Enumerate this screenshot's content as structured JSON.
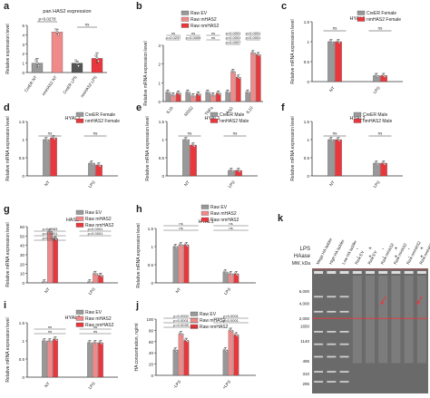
{
  "figure": {
    "panel_letters": [
      "a",
      "b",
      "c",
      "d",
      "e",
      "f",
      "g",
      "h",
      "i",
      "j",
      "k"
    ],
    "colors": {
      "grey": "#999999",
      "pink": "#F08A8A",
      "red": "#E8383D",
      "dark": "#555555",
      "gel_bg": "#6a6a6a",
      "gel_line": "#E8383D"
    }
  },
  "chart_data": [
    {
      "panel": "a",
      "type": "bar",
      "title": "pan HAS2 expression",
      "ylabel": "Relative expression level",
      "ylim": [
        0,
        5
      ],
      "yticks": [
        0,
        1,
        2,
        3,
        4,
        5
      ],
      "categories": [
        "CreER NT",
        "nmHAS2 NT",
        "CreER LPS",
        "nmHAS2 LPS"
      ],
      "values": [
        1.0,
        4.3,
        1.0,
        1.5
      ],
      "errors": [
        0.5,
        0.3,
        0.2,
        0.6
      ],
      "bar_colors": [
        "#999999",
        "#F08A8A",
        "#555555",
        "#E8383D"
      ],
      "annotations": [
        {
          "text": "p=0.0278",
          "from": 0,
          "to": 1
        },
        {
          "text": "ns",
          "from": 2,
          "to": 3
        }
      ]
    },
    {
      "panel": "b",
      "type": "bar",
      "ylabel": "Relative mRNA expression level",
      "ylim": [
        0,
        3
      ],
      "yticks": [
        0,
        1,
        2,
        3
      ],
      "categories": [
        "IL1b",
        "NOS2",
        "TNFa",
        "Arg1",
        "IL10"
      ],
      "legend": [
        "Raw EV",
        "Raw mHAS2",
        "Raw nmHAS2"
      ],
      "series": [
        {
          "name": "Raw EV",
          "values": [
            0.5,
            0.5,
            0.5,
            0.5,
            0.5
          ]
        },
        {
          "name": "Raw mHAS2",
          "values": [
            0.35,
            0.3,
            0.35,
            1.6,
            2.6
          ]
        },
        {
          "name": "Raw nmHAS2",
          "values": [
            0.45,
            0.4,
            0.45,
            1.3,
            2.5
          ]
        }
      ],
      "annotations": [
        {
          "group": 0,
          "lines": [
            "ns",
            "p=0.0297"
          ]
        },
        {
          "group": 1,
          "lines": [
            "ns",
            "p=0.0005"
          ]
        },
        {
          "group": 2,
          "lines": [
            "ns",
            "ns"
          ]
        },
        {
          "group": 3,
          "lines": [
            "p<0.0001",
            "p<0.0001",
            "p=0.0007"
          ]
        },
        {
          "group": 4,
          "lines": [
            "p<0.0001",
            "p<0.0001"
          ]
        }
      ]
    },
    {
      "panel": "c",
      "type": "bar",
      "title": "HYAL1",
      "ylabel": "Relative mRNA expression level",
      "ylim": [
        0,
        1.5
      ],
      "yticks": [
        0,
        0.5,
        1.0,
        1.5
      ],
      "categories": [
        "NT",
        "LPS"
      ],
      "legend": [
        "CreER Female",
        "nmHAS2 Female"
      ],
      "series": [
        {
          "name": "CreER Female",
          "values": [
            1.0,
            0.15
          ]
        },
        {
          "name": "nmHAS2 Female",
          "values": [
            1.0,
            0.15
          ]
        }
      ],
      "annotations": [
        "ns",
        "ns"
      ]
    },
    {
      "panel": "d",
      "type": "bar",
      "title": "HYAL2",
      "ylabel": "Relative mRNA expression level",
      "ylim": [
        0,
        1.5
      ],
      "yticks": [
        0,
        0.5,
        1.0,
        1.5
      ],
      "categories": [
        "NT",
        "LPS"
      ],
      "legend": [
        "CreER Female",
        "nmHAS2 Female"
      ],
      "series": [
        {
          "name": "CreER Female",
          "values": [
            1.0,
            0.35
          ]
        },
        {
          "name": "nmHAS2 Female",
          "values": [
            1.05,
            0.3
          ]
        }
      ],
      "annotations": [
        "ns",
        "ns"
      ]
    },
    {
      "panel": "e",
      "type": "bar",
      "title": "HYAL1",
      "ylabel": "Relative mRNA expression level",
      "ylim": [
        0,
        1.5
      ],
      "yticks": [
        0,
        0.5,
        1.0,
        1.5
      ],
      "categories": [
        "NT",
        "LPS"
      ],
      "legend": [
        "CreER Male",
        "nmHAS2 Male"
      ],
      "series": [
        {
          "name": "CreER Male",
          "values": [
            1.0,
            0.15
          ]
        },
        {
          "name": "nmHAS2 Male",
          "values": [
            0.85,
            0.15
          ]
        }
      ],
      "annotations": [
        "ns",
        "ns"
      ]
    },
    {
      "panel": "f",
      "type": "bar",
      "title": "HYAL2",
      "ylabel": "Relative mRNA expression level",
      "ylim": [
        0,
        1.5
      ],
      "yticks": [
        0,
        0.5,
        1.0,
        1.5
      ],
      "categories": [
        "NT",
        "LPS"
      ],
      "legend": [
        "CreER Male",
        "nmHAS2 Male"
      ],
      "series": [
        {
          "name": "CreER Male",
          "values": [
            1.0,
            0.35
          ]
        },
        {
          "name": "nmHAS2 Male",
          "values": [
            1.0,
            0.35
          ]
        }
      ],
      "annotations": [
        "ns",
        "ns"
      ]
    },
    {
      "panel": "g",
      "type": "bar",
      "title": "HAS2",
      "ylabel": "Relative mRNA expression level",
      "ylim": [
        0,
        60
      ],
      "yticks": [
        0,
        10,
        20,
        30,
        40,
        50,
        60
      ],
      "categories": [
        "NT",
        "LPS"
      ],
      "legend": [
        "Raw EV",
        "Raw mHAS2",
        "Raw nmHAS2"
      ],
      "series": [
        {
          "name": "Raw EV",
          "values": [
            1,
            1
          ]
        },
        {
          "name": "Raw mHAS2",
          "values": [
            55,
            10
          ]
        },
        {
          "name": "Raw nmHAS2",
          "values": [
            47,
            8
          ]
        }
      ],
      "annotations": [
        {
          "group": 0,
          "lines": [
            "p=0.0083",
            "p<0.0001",
            "p<0.0001"
          ]
        },
        {
          "group": 1,
          "lines": [
            "p<0.0001",
            "p=0.0001"
          ]
        }
      ]
    },
    {
      "panel": "h",
      "type": "bar",
      "title": "HYAL1",
      "ylabel": "Relative mRNA expression level",
      "ylim": [
        0,
        1.5
      ],
      "yticks": [
        0,
        0.5,
        1.0,
        1.5
      ],
      "categories": [
        "NT",
        "LPS"
      ],
      "legend": [
        "Raw EV",
        "Raw mHAS2",
        "Raw nmHAS2"
      ],
      "series": [
        {
          "name": "Raw EV",
          "values": [
            1.0,
            0.3
          ]
        },
        {
          "name": "Raw mHAS2",
          "values": [
            1.05,
            0.25
          ]
        },
        {
          "name": "Raw nmHAS2",
          "values": [
            1.05,
            0.25
          ]
        }
      ],
      "annotations": [
        {
          "group": 0,
          "lines": [
            "ns",
            "ns"
          ]
        },
        {
          "group": 1,
          "lines": [
            "ns",
            "ns"
          ]
        }
      ]
    },
    {
      "panel": "i",
      "type": "bar",
      "title": "HYAL2",
      "ylabel": "Relative mRNA expression level",
      "ylim": [
        0,
        1.5
      ],
      "yticks": [
        0,
        0.5,
        1.0,
        1.5
      ],
      "categories": [
        "NT",
        "LPS"
      ],
      "legend": [
        "Raw EV",
        "Raw mHAS2",
        "Raw nmHAS2"
      ],
      "series": [
        {
          "name": "Raw EV",
          "values": [
            1.0,
            0.95
          ]
        },
        {
          "name": "Raw mHAS2",
          "values": [
            1.0,
            0.95
          ]
        },
        {
          "name": "Raw nmHAS2",
          "values": [
            1.05,
            0.95
          ]
        }
      ],
      "annotations": [
        {
          "group": 0,
          "lines": [
            "ns",
            "ns"
          ]
        },
        {
          "group": 1,
          "lines": [
            "ns",
            "ns"
          ]
        }
      ]
    },
    {
      "panel": "j",
      "type": "bar",
      "ylabel": "HA concentration, ng/ml",
      "ylim": [
        0,
        100
      ],
      "yticks": [
        0,
        20,
        40,
        60,
        80,
        100
      ],
      "categories": [
        "-LPS",
        "+LPS"
      ],
      "legend": [
        "Raw EV",
        "Raw mHAS2",
        "Raw nmHAS2"
      ],
      "series": [
        {
          "name": "Raw EV",
          "values": [
            45,
            45
          ]
        },
        {
          "name": "Raw mHAS2",
          "values": [
            74,
            80
          ]
        },
        {
          "name": "Raw nmHAS2",
          "values": [
            62,
            72
          ]
        }
      ],
      "annotations": [
        {
          "group": 0,
          "lines": [
            "p=0.0002",
            "p<0.0001",
            "p=0.0039"
          ]
        },
        {
          "group": 1,
          "lines": [
            "p<0.0001",
            "p<0.0001"
          ]
        }
      ]
    }
  ],
  "gel": {
    "panel": "k",
    "lane_labels": [
      "Mega HA ladder",
      "High HA ladder",
      "Low HA ladder",
      "Raw EV",
      "Raw EV",
      "Raw mHAS2",
      "Raw mHAS2",
      "Raw nmHAS2",
      "Raw nmHAS2"
    ],
    "row_lps": "LPS",
    "row_haase": "HAase",
    "row_mw": "MW, kDa",
    "lps_signs": [
      "-",
      "+",
      "-",
      "+",
      "-",
      "+"
    ],
    "haase_signs": [
      "-",
      "+",
      "-",
      "+",
      "-",
      "+"
    ],
    "mw_labels": [
      "6,000",
      "4,000",
      "2,000",
      "1650",
      "1140",
      "495",
      "310",
      "295"
    ]
  }
}
